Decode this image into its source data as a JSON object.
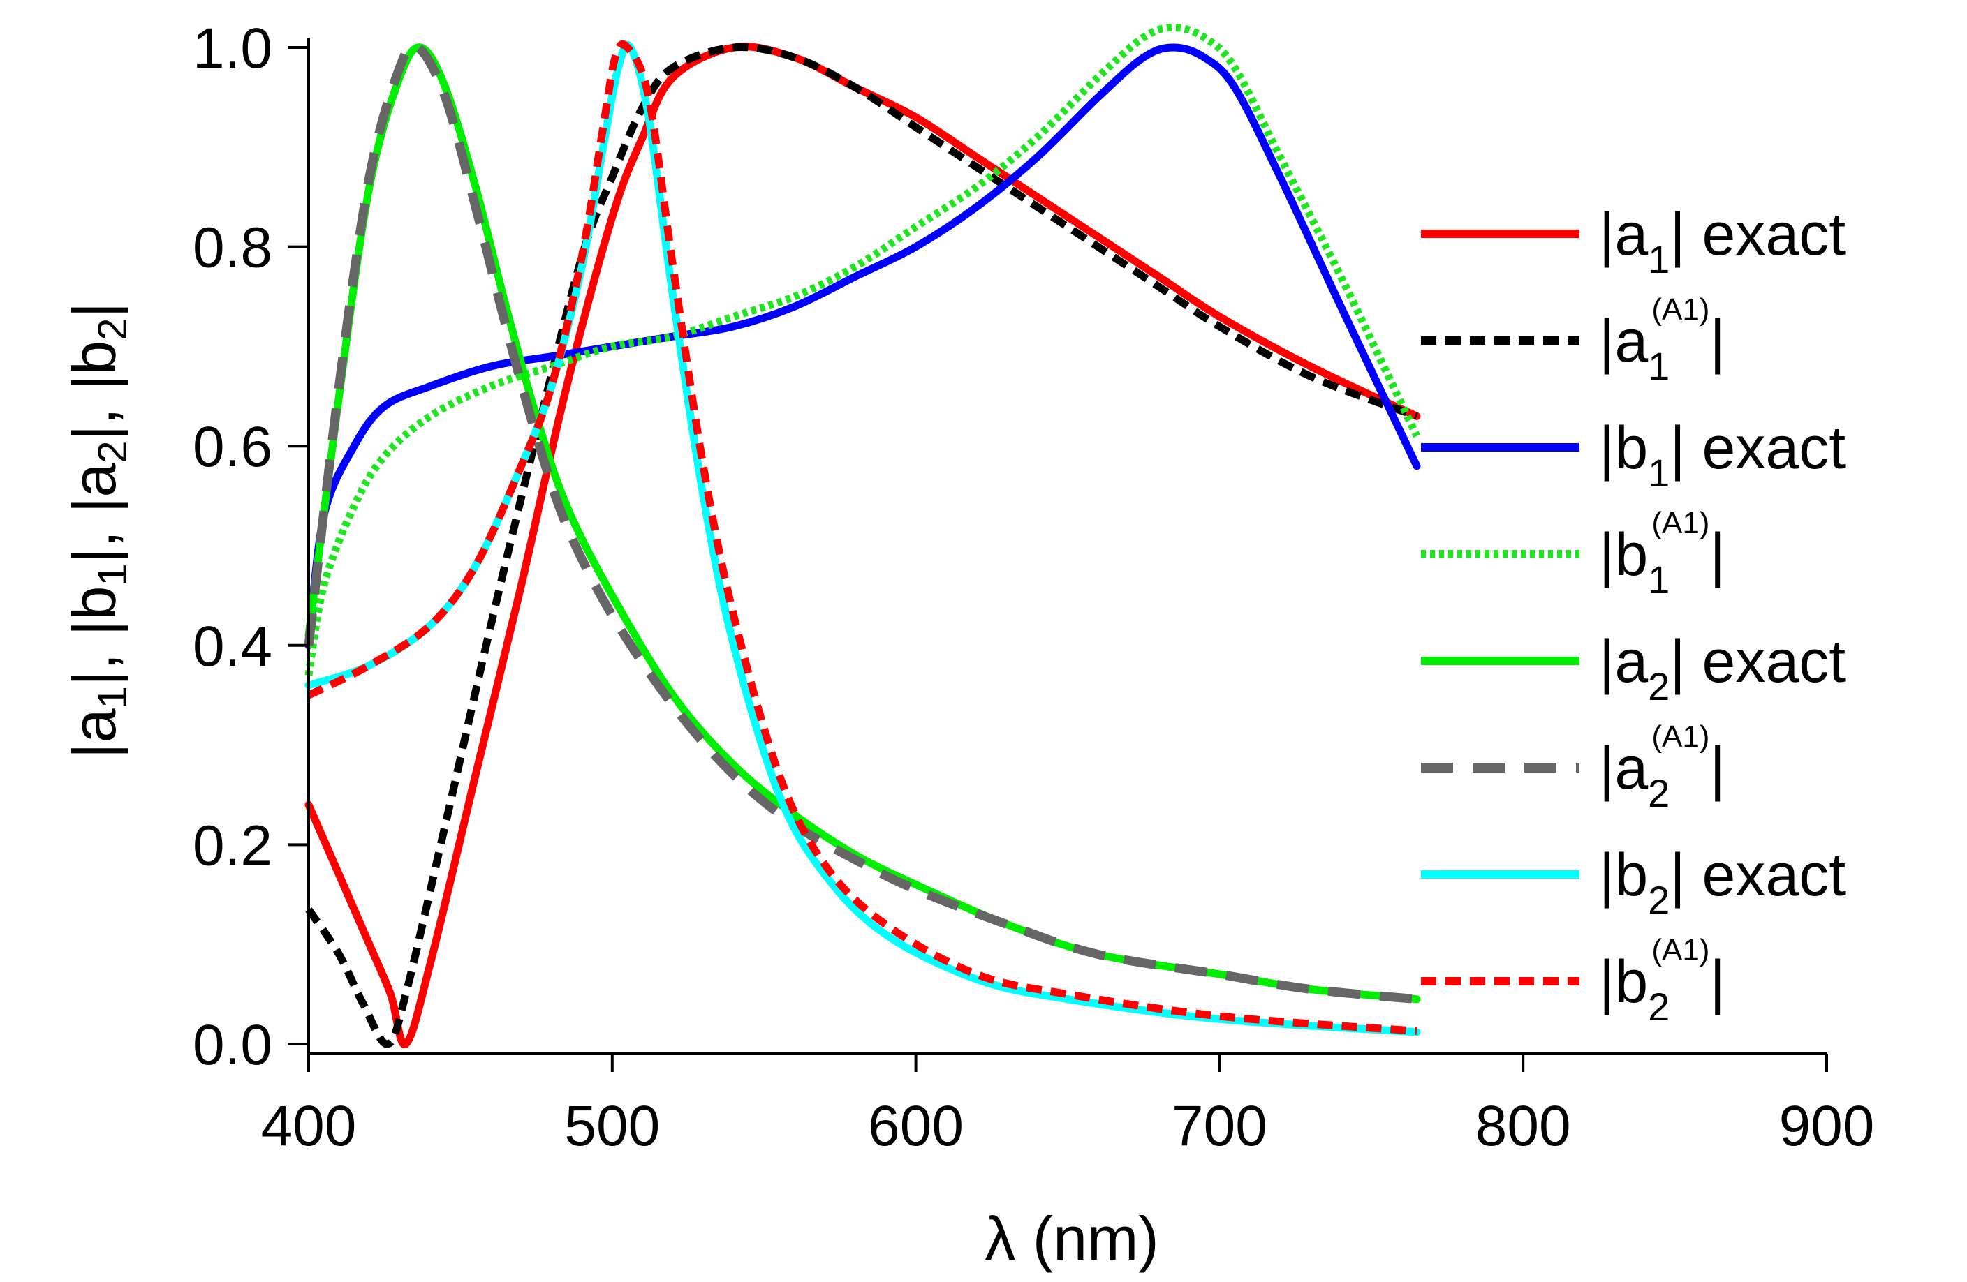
{
  "chart_data": {
    "type": "line",
    "xlabel": "λ (nm)",
    "ylabel_parts": [
      "|a",
      "1",
      "|, |b",
      "1",
      "|, |a",
      "2",
      "|, |b",
      "2",
      "|"
    ],
    "xlim": [
      400,
      900
    ],
    "ylim": [
      0.0,
      1.0
    ],
    "x_ticks": [
      400,
      500,
      600,
      700,
      800,
      900
    ],
    "x_tick_labels": [
      "400",
      "500",
      "600",
      "700",
      "800",
      "900"
    ],
    "y_ticks": [
      0.0,
      0.2,
      0.4,
      0.6,
      0.8,
      1.0
    ],
    "y_tick_labels": [
      "0.0",
      "0.2",
      "0.4",
      "0.6",
      "0.8",
      "1.0"
    ],
    "legend_position": "right",
    "series": [
      {
        "name": "|a1| exact",
        "label": {
          "pre": "|a",
          "sub": "1",
          "sup": "",
          "post": "| exact"
        },
        "color": "#ff0000",
        "style": "solid",
        "x": [
          400,
          410,
          420,
          427,
          432,
          440,
          455,
          470,
          485,
          500,
          510,
          520,
          540,
          560,
          580,
          600,
          620,
          650,
          680,
          700,
          730,
          765
        ],
        "y": [
          0.24,
          0.17,
          0.1,
          0.05,
          0.0,
          0.08,
          0.27,
          0.46,
          0.66,
          0.83,
          0.91,
          0.97,
          1.0,
          0.99,
          0.96,
          0.93,
          0.89,
          0.83,
          0.77,
          0.73,
          0.68,
          0.63
        ]
      },
      {
        "name": "|a1(A1)|",
        "label": {
          "pre": "|a",
          "sub": "1",
          "sup": "(A1)",
          "post": "|"
        },
        "color": "#000000",
        "style": "dashed",
        "x": [
          400,
          410,
          418,
          426,
          432,
          445,
          460,
          475,
          490,
          500,
          510,
          520,
          540,
          560,
          580,
          600,
          620,
          650,
          680,
          700,
          730,
          765
        ],
        "y": [
          0.135,
          0.09,
          0.04,
          0.0,
          0.05,
          0.22,
          0.42,
          0.61,
          0.79,
          0.87,
          0.94,
          0.98,
          1.0,
          0.99,
          0.96,
          0.92,
          0.88,
          0.82,
          0.76,
          0.72,
          0.67,
          0.63
        ]
      },
      {
        "name": "|b1| exact",
        "label": {
          "pre": "|b",
          "sub": "1",
          "sup": "",
          "post": "| exact"
        },
        "color": "#0000ff",
        "style": "solid",
        "x": [
          400,
          405,
          415,
          425,
          440,
          460,
          480,
          500,
          520,
          540,
          560,
          580,
          600,
          620,
          640,
          660,
          675,
          685,
          695,
          705,
          720,
          740,
          765
        ],
        "y": [
          0.4,
          0.53,
          0.6,
          0.64,
          0.66,
          0.68,
          0.69,
          0.7,
          0.71,
          0.72,
          0.74,
          0.77,
          0.8,
          0.84,
          0.89,
          0.95,
          0.99,
          1.0,
          0.99,
          0.96,
          0.87,
          0.74,
          0.58
        ]
      },
      {
        "name": "|b1(A1)|",
        "label": {
          "pre": "|b",
          "sub": "1",
          "sup": "(A1)",
          "post": "|"
        },
        "color": "#1ee61e",
        "style": "dotted",
        "x": [
          400,
          405,
          415,
          425,
          440,
          460,
          480,
          500,
          520,
          540,
          560,
          580,
          600,
          620,
          640,
          660,
          675,
          685,
          695,
          705,
          720,
          740,
          765
        ],
        "y": [
          0.37,
          0.46,
          0.54,
          0.59,
          0.63,
          0.66,
          0.68,
          0.7,
          0.71,
          0.73,
          0.75,
          0.78,
          0.82,
          0.86,
          0.91,
          0.97,
          1.01,
          1.02,
          1.01,
          0.98,
          0.89,
          0.77,
          0.61
        ]
      },
      {
        "name": "|a2| exact",
        "label": {
          "pre": "|a",
          "sub": "2",
          "sup": "",
          "post": "| exact"
        },
        "color": "#00ee00",
        "style": "solid",
        "x": [
          400,
          410,
          420,
          430,
          437,
          445,
          455,
          465,
          475,
          485,
          500,
          520,
          540,
          560,
          580,
          600,
          630,
          660,
          700,
          730,
          765
        ],
        "y": [
          0.41,
          0.65,
          0.86,
          0.97,
          1.0,
          0.96,
          0.86,
          0.74,
          0.63,
          0.54,
          0.45,
          0.35,
          0.28,
          0.23,
          0.19,
          0.16,
          0.12,
          0.09,
          0.07,
          0.055,
          0.045
        ]
      },
      {
        "name": "|a2(A1)|",
        "label": {
          "pre": "|a",
          "sub": "2",
          "sup": "(A1)",
          "post": "|"
        },
        "color": "#666666",
        "style": "longdash",
        "x": [
          400,
          410,
          420,
          430,
          436,
          445,
          455,
          465,
          475,
          485,
          500,
          520,
          540,
          560,
          580,
          600,
          630,
          660,
          700,
          730,
          765
        ],
        "y": [
          0.4,
          0.66,
          0.87,
          0.98,
          1.0,
          0.95,
          0.84,
          0.72,
          0.61,
          0.52,
          0.43,
          0.34,
          0.27,
          0.22,
          0.185,
          0.155,
          0.12,
          0.09,
          0.07,
          0.055,
          0.045
        ]
      },
      {
        "name": "|b2| exact",
        "label": {
          "pre": "|b",
          "sub": "2",
          "sup": "",
          "post": "| exact"
        },
        "color": "#00ffff",
        "style": "solid",
        "x": [
          400,
          420,
          440,
          455,
          470,
          480,
          490,
          497,
          502,
          506,
          512,
          520,
          530,
          540,
          555,
          570,
          590,
          620,
          650,
          700,
          765
        ],
        "y": [
          0.36,
          0.38,
          0.42,
          0.48,
          0.58,
          0.66,
          0.78,
          0.9,
          0.98,
          1.0,
          0.93,
          0.75,
          0.55,
          0.4,
          0.25,
          0.17,
          0.11,
          0.065,
          0.045,
          0.025,
          0.012
        ]
      },
      {
        "name": "|b2(A1)|",
        "label": {
          "pre": "|b",
          "sub": "2",
          "sup": "(A1)",
          "post": "|"
        },
        "color": "#ff0000",
        "style": "dashed",
        "x": [
          400,
          420,
          440,
          455,
          470,
          480,
          490,
          497,
          501,
          505,
          512,
          520,
          530,
          540,
          555,
          570,
          590,
          620,
          650,
          700,
          765
        ],
        "y": [
          0.35,
          0.38,
          0.42,
          0.48,
          0.58,
          0.66,
          0.79,
          0.92,
          0.99,
          1.0,
          0.95,
          0.78,
          0.58,
          0.43,
          0.27,
          0.18,
          0.12,
          0.07,
          0.05,
          0.028,
          0.013
        ]
      }
    ]
  }
}
